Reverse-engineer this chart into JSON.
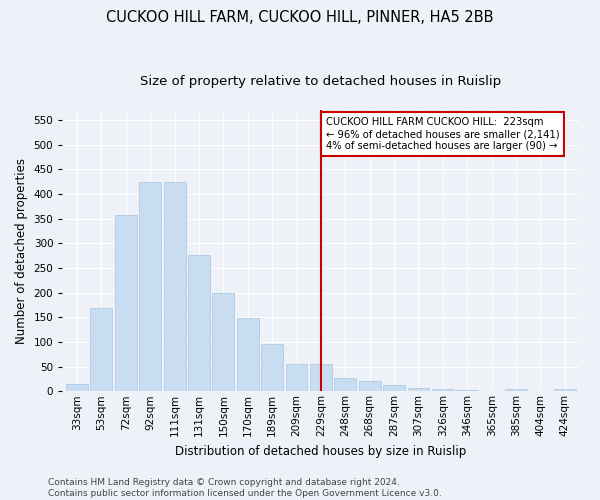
{
  "title": "CUCKOO HILL FARM, CUCKOO HILL, PINNER, HA5 2BB",
  "subtitle": "Size of property relative to detached houses in Ruislip",
  "xlabel": "Distribution of detached houses by size in Ruislip",
  "ylabel": "Number of detached properties",
  "categories": [
    "33sqm",
    "53sqm",
    "72sqm",
    "92sqm",
    "111sqm",
    "131sqm",
    "150sqm",
    "170sqm",
    "189sqm",
    "209sqm",
    "229sqm",
    "248sqm",
    "268sqm",
    "287sqm",
    "307sqm",
    "326sqm",
    "346sqm",
    "365sqm",
    "385sqm",
    "404sqm",
    "424sqm"
  ],
  "values": [
    14,
    168,
    357,
    425,
    425,
    277,
    200,
    148,
    96,
    55,
    55,
    27,
    20,
    12,
    7,
    5,
    3,
    0,
    5,
    0,
    5
  ],
  "bar_color": "#c9ddf2",
  "bar_edge_color": "#a8c4e0",
  "vline_index": 10,
  "vline_color": "#cc0000",
  "annotation_text": "CUCKOO HILL FARM CUCKOO HILL:  223sqm\n← 96% of detached houses are smaller (2,141)\n4% of semi-detached houses are larger (90) →",
  "annotation_box_color": "#ffffff",
  "annotation_box_edge": "#cc0000",
  "ylim": [
    0,
    570
  ],
  "yticks": [
    0,
    50,
    100,
    150,
    200,
    250,
    300,
    350,
    400,
    450,
    500,
    550
  ],
  "footer": "Contains HM Land Registry data © Crown copyright and database right 2024.\nContains public sector information licensed under the Open Government Licence v3.0.",
  "bg_color": "#eef2f8",
  "plot_bg_color": "#eef2f8",
  "title_fontsize": 10.5,
  "subtitle_fontsize": 9.5,
  "axis_label_fontsize": 8.5,
  "tick_fontsize": 7.5,
  "footer_fontsize": 6.5
}
